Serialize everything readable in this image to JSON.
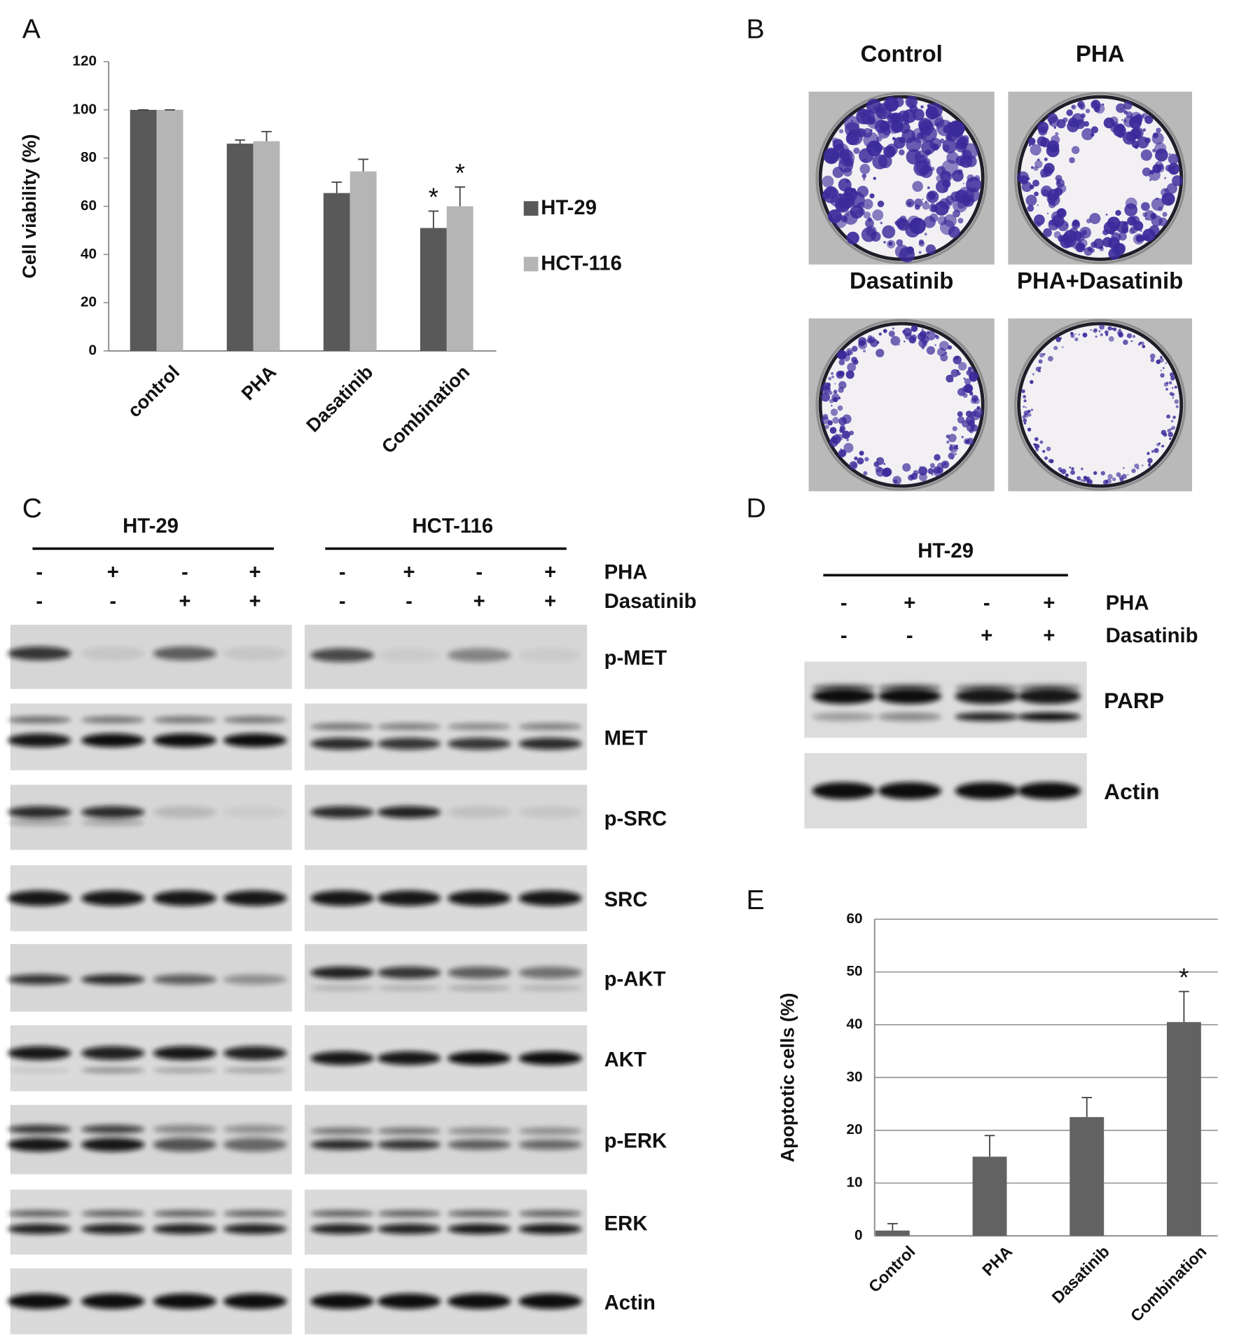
{
  "panel_labels": [
    "A",
    "B",
    "C",
    "D",
    "E"
  ],
  "chart_data": [
    {
      "type": "bar",
      "y_label": "Cell viability (%)",
      "categories": [
        "control",
        "PHA",
        "Dasatinib",
        "Combination"
      ],
      "series": [
        {
          "name": "HT-29",
          "color": "#595959",
          "values": [
            100,
            86,
            65.5,
            51
          ],
          "errors": [
            0,
            1.5,
            4.5,
            7
          ],
          "annotations": [
            null,
            null,
            null,
            "*"
          ]
        },
        {
          "name": "HCT-116",
          "color": "#b5b5b5",
          "values": [
            100,
            87,
            74.5,
            60
          ],
          "errors": [
            0,
            4,
            5,
            8
          ],
          "annotations": [
            null,
            null,
            null,
            "*"
          ]
        }
      ],
      "ylim": [
        0,
        120
      ],
      "yticks": [
        0,
        20,
        40,
        60,
        80,
        100,
        120
      ],
      "grid": false,
      "legend": "right"
    },
    {
      "type": "bar",
      "y_label": "Apoptotic cells (%)",
      "categories": [
        "Control",
        "PHA",
        "Dasatinib",
        "Combination"
      ],
      "values": [
        1,
        15,
        22.5,
        40.5
      ],
      "errors": [
        1.3,
        4,
        3.7,
        5.8
      ],
      "annotations": [
        null,
        null,
        null,
        "*"
      ],
      "color": "#626262",
      "ylim": [
        0,
        60
      ],
      "yticks": [
        0,
        10,
        20,
        30,
        40,
        50,
        60
      ],
      "grid": true
    }
  ],
  "panel_b": {
    "titles": [
      "Control",
      "PHA",
      "Dasatinib",
      "PHA+Dasatinib"
    ]
  },
  "panel_c": {
    "groups": [
      "HT-29",
      "HCT-116"
    ],
    "treatments": [
      {
        "name": "PHA",
        "signs": [
          "-",
          "+",
          "-",
          "+"
        ]
      },
      {
        "name": "Dasatinib",
        "signs": [
          "-",
          "-",
          "+",
          "+"
        ]
      }
    ],
    "blots": [
      "p-MET",
      "MET",
      "p-SRC",
      "SRC",
      "p-AKT",
      "AKT",
      "p-ERK",
      "ERK",
      "Actin"
    ]
  },
  "panel_d": {
    "group": "HT-29",
    "treatments": [
      {
        "name": "PHA",
        "signs": [
          "-",
          "+",
          "-",
          "+"
        ]
      },
      {
        "name": "Dasatinib",
        "signs": [
          "-",
          "-",
          "+",
          "+"
        ]
      }
    ],
    "blots": [
      "PARP",
      "Actin"
    ]
  }
}
